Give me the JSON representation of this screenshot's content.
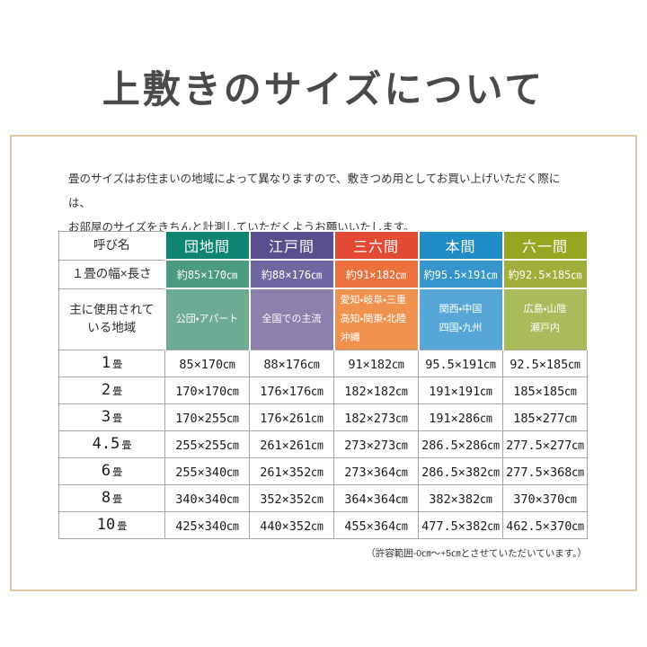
{
  "page": {
    "title": "上敷きのサイズについて",
    "description_lines": [
      "畳のサイズはお住まいの地域によって異なりますので、敷きつめ用としてお買い上げいただく際には、",
      "お部屋のサイズをきちんと計測していただくようお願いいたします。"
    ],
    "footnote": "（許容範囲-0㎝〜+5㎝とさせていただいています。）",
    "frame_color": "#ddc8a0"
  },
  "table": {
    "corner_label": "呼び名",
    "width_row_label": "１畳の幅×長さ",
    "region_row_label_lines": [
      "主に使用されて",
      "いる地域"
    ],
    "size_row_labels": [
      {
        "num": "1",
        "unit": "畳"
      },
      {
        "num": "2",
        "unit": "畳"
      },
      {
        "num": "3",
        "unit": "畳"
      },
      {
        "num": "4.5",
        "unit": "畳"
      },
      {
        "num": "6",
        "unit": "畳"
      },
      {
        "num": "8",
        "unit": "畳"
      },
      {
        "num": "10",
        "unit": "畳"
      }
    ],
    "columns": [
      {
        "name": "団地間",
        "colors": {
          "header": "#0f8571",
          "width": "#4a9b82",
          "region": "#6dab92"
        },
        "width_value": "約85×170㎝",
        "region_lines": [
          "公団・アパート"
        ],
        "region_align": "center",
        "sizes": [
          "85×170㎝",
          "170×170㎝",
          "170×255㎝",
          "255×255㎝",
          "255×340㎝",
          "340×340㎝",
          "425×340㎝"
        ]
      },
      {
        "name": "江戸間",
        "colors": {
          "header": "#5a4f8e",
          "width": "#6f67a2",
          "region": "#8c80ad"
        },
        "width_value": "約88×176㎝",
        "region_lines": [
          "全国での主流"
        ],
        "region_align": "center",
        "sizes": [
          "88×176㎝",
          "176×176㎝",
          "176×261㎝",
          "261×261㎝",
          "261×352㎝",
          "352×352㎝",
          "440×352㎝"
        ]
      },
      {
        "name": "三六間",
        "colors": {
          "header": "#e24a33",
          "width": "#ec713c",
          "region": "#f0914d"
        },
        "width_value": "約91×182㎝",
        "region_lines": [
          "愛知・岐阜・三重",
          "高知・関東・北陸",
          "沖縄"
        ],
        "region_align": "left",
        "sizes": [
          "91×182㎝",
          "182×182㎝",
          "182×273㎝",
          "273×273㎝",
          "273×364㎝",
          "364×364㎝",
          "455×364㎝"
        ]
      },
      {
        "name": "本間",
        "colors": {
          "header": "#1f8cc5",
          "width": "#3496cd",
          "region": "#56a6d8"
        },
        "width_value": "約95.5×191㎝",
        "region_lines": [
          "関西・中国",
          "四国・九州"
        ],
        "region_align": "center",
        "sizes": [
          "95.5×191㎝",
          "191×191㎝",
          "191×286㎝",
          "286.5×286㎝",
          "286.5×382㎝",
          "382×382㎝",
          "477.5×382㎝"
        ]
      },
      {
        "name": "六一間",
        "colors": {
          "header": "#97a620",
          "width": "#a0ae3a",
          "region": "#a9bc5c"
        },
        "width_value": "約92.5×185㎝",
        "region_lines": [
          "広島・山陰",
          "瀬戸内"
        ],
        "region_align": "center",
        "sizes": [
          "92.5×185㎝",
          "185×185㎝",
          "185×277㎝",
          "277.5×277㎝",
          "277.5×368㎝",
          "370×370㎝",
          "462.5×370㎝"
        ]
      }
    ]
  }
}
